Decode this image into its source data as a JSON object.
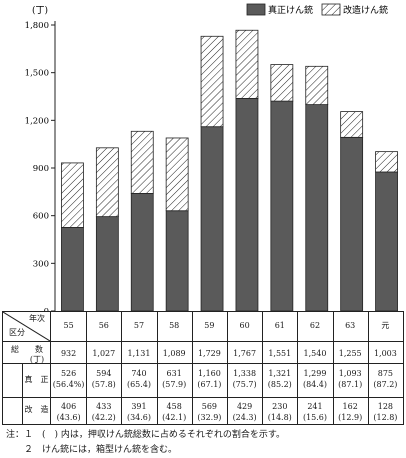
{
  "chart_data": {
    "type": "bar",
    "stacked": true,
    "unit_label": "(丁)",
    "categories": [
      "55",
      "56",
      "57",
      "58",
      "59",
      "60",
      "61",
      "62",
      "63",
      "元"
    ],
    "series": [
      {
        "name": "真正けん銃",
        "values": [
          526,
          594,
          740,
          631,
          1160,
          1338,
          1321,
          1299,
          1093,
          875
        ],
        "fill": "dark-gray"
      },
      {
        "name": "改造けん銃",
        "values": [
          406,
          433,
          391,
          458,
          569,
          429,
          230,
          241,
          162,
          128
        ],
        "fill": "hatched"
      }
    ],
    "ylim": [
      0,
      1800
    ],
    "yticks": [
      "0",
      "300",
      "600",
      "900",
      "1,200",
      "1,500",
      "1,800"
    ],
    "legend_position": "top-right",
    "grid": false
  },
  "table": {
    "header_nendo": "年次",
    "header_kubun": "区分",
    "years": [
      "55",
      "56",
      "57",
      "58",
      "59",
      "60",
      "61",
      "62",
      "63",
      "元"
    ],
    "total_label_main": "総　　数",
    "total_label_unit": "(丁)",
    "totals": [
      "932",
      "1,027",
      "1,131",
      "1,089",
      "1,729",
      "1,767",
      "1,551",
      "1,540",
      "1,255",
      "1,003"
    ],
    "real_label": "真　正",
    "real_values": [
      "526",
      "594",
      "740",
      "631",
      "1,160",
      "1,338",
      "1,321",
      "1,299",
      "1,093",
      "875"
    ],
    "real_pct": [
      "(56.4%)",
      "(57.8)",
      "(65.4)",
      "(57.9)",
      "(67.1)",
      "(75.7)",
      "(85.2)",
      "(84.4)",
      "(87.1)",
      "(87.2)"
    ],
    "mod_label": "改　造",
    "mod_values": [
      "406",
      "433",
      "391",
      "458",
      "569",
      "429",
      "230",
      "241",
      "162",
      "128"
    ],
    "mod_pct": [
      "(43.6)",
      "(42.2)",
      "(34.6)",
      "(42.1)",
      "(32.9)",
      "(24.3)",
      "(14.8)",
      "(15.6)",
      "(12.9)",
      "(12.8)"
    ]
  },
  "notes": {
    "note1": "注：１　(　) 内は，押収けん銃総数に占めるそれぞれの割合を示す。",
    "note2": "　　２　けん銃には，箱型けん銃を含む。"
  }
}
